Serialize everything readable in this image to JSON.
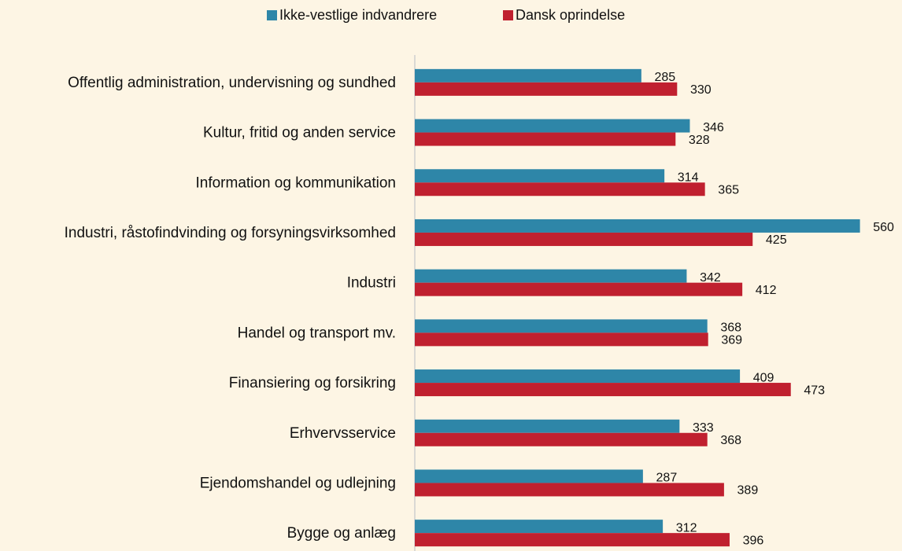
{
  "chart_data": {
    "type": "hbar",
    "categories": [
      "Offentlig administration, undervisning og sundhed",
      "Kultur, fritid og anden service",
      "Information og kommunikation",
      "Industri, råstofindvinding og forsyningsvirksomhed",
      "Industri",
      "Handel og transport mv.",
      "Finansiering og forsikring",
      "Erhvervsservice",
      "Ejendomshandel og udlejning",
      "Bygge og anlæg"
    ],
    "series": [
      {
        "name": "Ikke-vestlige indvandrere",
        "color": "#2e86a8",
        "values": [
          285,
          346,
          314,
          560,
          342,
          368,
          409,
          333,
          287,
          312
        ]
      },
      {
        "name": "Dansk oprindelse",
        "color": "#c0202f",
        "values": [
          330,
          328,
          365,
          425,
          412,
          369,
          473,
          368,
          389,
          396
        ]
      }
    ],
    "xlim": [
      0,
      600
    ],
    "legend": "top"
  }
}
